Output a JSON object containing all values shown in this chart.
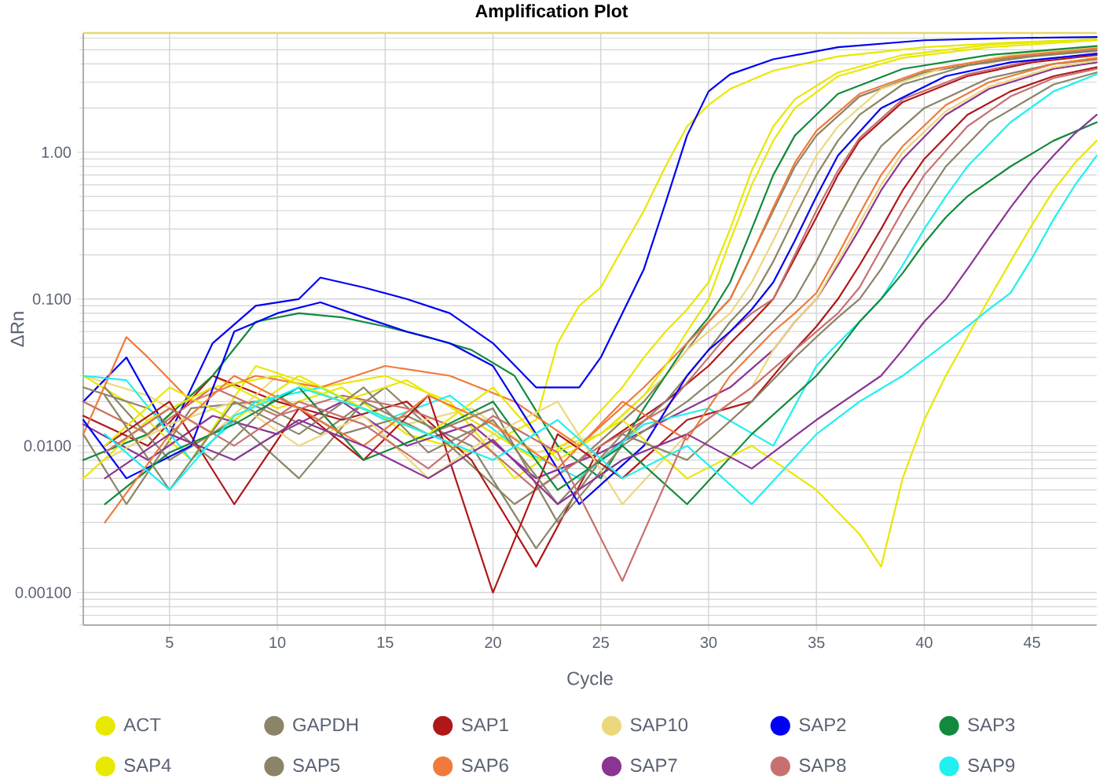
{
  "chart_data": {
    "type": "line",
    "title": "Amplification Plot",
    "xlabel": "Cycle",
    "ylabel": "ΔRn",
    "log": "y",
    "grid": true,
    "legend": "bottom",
    "xlim": [
      1,
      48
    ],
    "xticks": [
      5,
      10,
      15,
      20,
      25,
      30,
      35,
      40,
      45
    ],
    "ylim": [
      0.0006,
      6.5
    ],
    "yticks": [
      {
        "value": 0.001,
        "label": "0.00100"
      },
      {
        "value": 0.01,
        "label": "0.0100"
      },
      {
        "value": 0.1,
        "label": "0.100"
      },
      {
        "value": 1,
        "label": "1.00"
      }
    ],
    "ref_lines": [
      {
        "axis": "y",
        "value": 6.5,
        "color": "#e6d870"
      }
    ],
    "series": [
      {
        "name": "ACT",
        "color": "#e8e800",
        "x": [
          1,
          4,
          7,
          10,
          13,
          16,
          19,
          22,
          23,
          24,
          25,
          26,
          27,
          28,
          29,
          30,
          31,
          33,
          36,
          40,
          44,
          48
        ],
        "values": [
          0.02,
          0.012,
          0.03,
          0.018,
          0.025,
          0.012,
          0.009,
          0.015,
          0.05,
          0.09,
          0.12,
          0.22,
          0.4,
          0.8,
          1.5,
          2.1,
          2.7,
          3.6,
          4.5,
          5.2,
          5.6,
          5.9
        ]
      },
      {
        "name": "GAPDH",
        "color": "#8b8468",
        "x": [
          1,
          3,
          6,
          9,
          12,
          15,
          18,
          21,
          24,
          27,
          28,
          29,
          30,
          31,
          32,
          33,
          34,
          35,
          37,
          40,
          44,
          48
        ],
        "values": [
          0.012,
          0.004,
          0.018,
          0.02,
          0.012,
          0.025,
          0.01,
          0.004,
          0.008,
          0.02,
          0.03,
          0.045,
          0.07,
          0.1,
          0.2,
          0.4,
          0.8,
          1.3,
          2.4,
          3.5,
          4.4,
          5.0
        ]
      },
      {
        "name": "SAP1",
        "color": "#b01818",
        "x": [
          1,
          4,
          7,
          10,
          13,
          16,
          19,
          22,
          25,
          28,
          30,
          31,
          32,
          33,
          34,
          35,
          36,
          37,
          39,
          42,
          45,
          48
        ],
        "values": [
          0.016,
          0.01,
          0.03,
          0.02,
          0.015,
          0.02,
          0.008,
          0.0015,
          0.01,
          0.02,
          0.035,
          0.05,
          0.07,
          0.1,
          0.19,
          0.36,
          0.7,
          1.2,
          2.2,
          3.3,
          4.1,
          4.6
        ]
      },
      {
        "name": "SAP10",
        "color": "#ecd87c",
        "x": [
          1,
          4,
          7,
          10,
          13,
          16,
          19,
          22,
          25,
          28,
          29,
          30,
          31,
          32,
          33,
          34,
          35,
          36,
          38,
          41,
          44,
          48
        ],
        "values": [
          0.03,
          0.022,
          0.012,
          0.03,
          0.02,
          0.014,
          0.018,
          0.009,
          0.012,
          0.03,
          0.045,
          0.06,
          0.08,
          0.13,
          0.25,
          0.5,
          0.95,
          1.5,
          2.7,
          3.8,
          4.6,
          5.2
        ]
      },
      {
        "name": "SAP2",
        "color": "#0000f5",
        "x": [
          1,
          3,
          5,
          7,
          9,
          11,
          12,
          14,
          16,
          18,
          20,
          22,
          24,
          25,
          26,
          27,
          28,
          29,
          30,
          31,
          33,
          36,
          40,
          44,
          48
        ],
        "values": [
          0.02,
          0.04,
          0.012,
          0.05,
          0.09,
          0.1,
          0.14,
          0.12,
          0.1,
          0.08,
          0.05,
          0.025,
          0.025,
          0.04,
          0.08,
          0.16,
          0.45,
          1.3,
          2.6,
          3.4,
          4.3,
          5.2,
          5.8,
          6.0,
          6.1
        ]
      },
      {
        "name": "SAP3",
        "color": "#128a3e",
        "x": [
          1,
          4,
          7,
          9,
          11,
          13,
          15,
          17,
          19,
          21,
          23,
          25,
          27,
          28,
          29,
          30,
          31,
          32,
          33,
          34,
          36,
          39,
          43,
          48
        ],
        "values": [
          0.008,
          0.012,
          0.03,
          0.07,
          0.08,
          0.075,
          0.065,
          0.055,
          0.045,
          0.03,
          0.01,
          0.006,
          0.018,
          0.03,
          0.05,
          0.075,
          0.13,
          0.3,
          0.7,
          1.3,
          2.5,
          3.7,
          4.6,
          5.3
        ]
      },
      {
        "name": "SAP4",
        "color": "#e8e800",
        "x": [
          1,
          3,
          6,
          9,
          12,
          15,
          18,
          21,
          24,
          26,
          27,
          28,
          29,
          30,
          31,
          32,
          33,
          34,
          36,
          39,
          43,
          48
        ],
        "values": [
          0.03,
          0.02,
          0.008,
          0.035,
          0.025,
          0.03,
          0.02,
          0.006,
          0.012,
          0.025,
          0.04,
          0.06,
          0.085,
          0.13,
          0.3,
          0.75,
          1.5,
          2.3,
          3.5,
          4.6,
          5.4,
          5.9
        ]
      },
      {
        "name": "SAP5",
        "color": "#8b8468",
        "x": [
          1,
          4,
          7,
          10,
          13,
          16,
          19,
          22,
          25,
          28,
          30,
          31,
          32,
          33,
          34,
          35,
          36,
          37,
          39,
          42,
          45,
          48
        ],
        "values": [
          0.025,
          0.018,
          0.008,
          0.022,
          0.012,
          0.016,
          0.01,
          0.002,
          0.008,
          0.02,
          0.045,
          0.07,
          0.1,
          0.18,
          0.36,
          0.7,
          1.2,
          1.8,
          2.9,
          3.9,
          4.5,
          4.9
        ]
      },
      {
        "name": "SAP6",
        "color": "#f07a3c",
        "x": [
          1,
          3,
          4,
          6,
          9,
          12,
          15,
          18,
          21,
          24,
          27,
          29,
          30,
          31,
          32,
          33,
          34,
          35,
          37,
          40,
          44,
          48
        ],
        "values": [
          0.012,
          0.055,
          0.04,
          0.02,
          0.03,
          0.025,
          0.035,
          0.03,
          0.02,
          0.01,
          0.025,
          0.05,
          0.07,
          0.1,
          0.2,
          0.42,
          0.85,
          1.4,
          2.5,
          3.6,
          4.5,
          5.1
        ]
      },
      {
        "name": "SAP7",
        "color": "#8c3494",
        "x": [
          1,
          4,
          7,
          10,
          13,
          16,
          19,
          22,
          25,
          28,
          31,
          33,
          34,
          35,
          36,
          37,
          38,
          39,
          41,
          43,
          46,
          48
        ],
        "values": [
          0.014,
          0.008,
          0.016,
          0.012,
          0.02,
          0.01,
          0.014,
          0.006,
          0.009,
          0.015,
          0.025,
          0.045,
          0.07,
          0.1,
          0.17,
          0.3,
          0.55,
          0.9,
          1.8,
          2.7,
          3.7,
          4.1
        ]
      },
      {
        "name": "SAP8",
        "color": "#c87070",
        "x": [
          1,
          4,
          7,
          10,
          13,
          16,
          19,
          22,
          25,
          28,
          30,
          31,
          32,
          33,
          34,
          35,
          36,
          37,
          39,
          42,
          45,
          48
        ],
        "values": [
          0.02,
          0.012,
          0.025,
          0.016,
          0.022,
          0.018,
          0.012,
          0.005,
          0.01,
          0.018,
          0.04,
          0.06,
          0.08,
          0.1,
          0.2,
          0.4,
          0.75,
          1.25,
          2.3,
          3.4,
          4.2,
          4.7
        ]
      },
      {
        "name": "SAP9",
        "color": "#20f0f0",
        "x": [
          1,
          3,
          6,
          9,
          12,
          15,
          18,
          21,
          24,
          27,
          30,
          33,
          35,
          36,
          37,
          38,
          39,
          40,
          41,
          42,
          44,
          46,
          48
        ],
        "values": [
          0.03,
          0.028,
          0.008,
          0.02,
          0.025,
          0.015,
          0.022,
          0.01,
          0.006,
          0.014,
          0.018,
          0.01,
          0.035,
          0.05,
          0.07,
          0.1,
          0.17,
          0.3,
          0.5,
          0.8,
          1.6,
          2.6,
          3.4
        ]
      },
      {
        "color": "#e8e800",
        "x": [
          1,
          4,
          7,
          10,
          13,
          16,
          19,
          22,
          25,
          26,
          27,
          28,
          29,
          30,
          31,
          32,
          33,
          34,
          36,
          39,
          43,
          48
        ],
        "values": [
          0.006,
          0.015,
          0.025,
          0.03,
          0.02,
          0.028,
          0.015,
          0.008,
          0.012,
          0.016,
          0.022,
          0.035,
          0.06,
          0.1,
          0.25,
          0.6,
          1.2,
          2.0,
          3.3,
          4.4,
          5.2,
          5.8
        ]
      },
      {
        "color": "#8b8468",
        "x": [
          2,
          5,
          8,
          11,
          14,
          17,
          20,
          23,
          26,
          29,
          31,
          32,
          33,
          34,
          35,
          36,
          37,
          38,
          40,
          43,
          46,
          48
        ],
        "values": [
          0.025,
          0.008,
          0.015,
          0.006,
          0.02,
          0.012,
          0.018,
          0.003,
          0.01,
          0.02,
          0.035,
          0.05,
          0.07,
          0.1,
          0.18,
          0.35,
          0.65,
          1.1,
          2.0,
          3.2,
          4.0,
          4.3
        ]
      },
      {
        "color": "#b01818",
        "x": [
          2,
          5,
          8,
          11,
          14,
          17,
          20,
          23,
          26,
          29,
          32,
          34,
          35,
          36,
          37,
          38,
          39,
          40,
          42,
          44,
          46,
          48
        ],
        "values": [
          0.01,
          0.02,
          0.004,
          0.018,
          0.008,
          0.022,
          0.001,
          0.012,
          0.006,
          0.015,
          0.02,
          0.045,
          0.065,
          0.1,
          0.17,
          0.3,
          0.55,
          0.9,
          1.8,
          2.6,
          3.3,
          3.8
        ]
      },
      {
        "color": "#ecd87c",
        "x": [
          2,
          5,
          8,
          11,
          14,
          17,
          20,
          23,
          26,
          29,
          32,
          33,
          34,
          35,
          36,
          37,
          38,
          39,
          41,
          43,
          46,
          48
        ],
        "values": [
          0.008,
          0.014,
          0.02,
          0.01,
          0.016,
          0.006,
          0.012,
          0.02,
          0.004,
          0.012,
          0.025,
          0.045,
          0.07,
          0.1,
          0.18,
          0.33,
          0.6,
          1.0,
          1.9,
          2.8,
          3.8,
          4.2
        ]
      },
      {
        "color": "#0000f5",
        "x": [
          1,
          3,
          6,
          8,
          10,
          12,
          14,
          16,
          18,
          20,
          22,
          24,
          27,
          29,
          30,
          31,
          32,
          33,
          34,
          35,
          36,
          38,
          41,
          44,
          48
        ],
        "values": [
          0.015,
          0.006,
          0.01,
          0.06,
          0.08,
          0.095,
          0.075,
          0.06,
          0.05,
          0.035,
          0.012,
          0.004,
          0.01,
          0.03,
          0.045,
          0.06,
          0.085,
          0.13,
          0.25,
          0.5,
          0.95,
          2.0,
          3.3,
          4.1,
          4.7
        ]
      },
      {
        "color": "#128a3e",
        "x": [
          2,
          5,
          8,
          11,
          14,
          17,
          20,
          23,
          26,
          29,
          32,
          35,
          36,
          37,
          38,
          39,
          40,
          41,
          42,
          44,
          46,
          48
        ],
        "values": [
          0.004,
          0.009,
          0.014,
          0.025,
          0.008,
          0.012,
          0.02,
          0.005,
          0.01,
          0.004,
          0.012,
          0.03,
          0.045,
          0.07,
          0.1,
          0.15,
          0.24,
          0.36,
          0.5,
          0.8,
          1.2,
          1.6
        ]
      },
      {
        "color": "#e8e800",
        "x": [
          2,
          5,
          8,
          11,
          14,
          17,
          20,
          23,
          26,
          29,
          32,
          35,
          37,
          38,
          39,
          40,
          41,
          42,
          43,
          44,
          45,
          46,
          47,
          48
        ],
        "values": [
          0.01,
          0.025,
          0.015,
          0.03,
          0.018,
          0.012,
          0.025,
          0.008,
          0.015,
          0.006,
          0.01,
          0.005,
          0.0025,
          0.0015,
          0.006,
          0.015,
          0.03,
          0.055,
          0.1,
          0.18,
          0.32,
          0.55,
          0.85,
          1.2
        ]
      },
      {
        "color": "#8b8468",
        "x": [
          2,
          5,
          8,
          11,
          14,
          17,
          20,
          23,
          26,
          29,
          32,
          34,
          35,
          36,
          37,
          38,
          39,
          40,
          41,
          43,
          46,
          48
        ],
        "values": [
          0.022,
          0.005,
          0.02,
          0.012,
          0.025,
          0.009,
          0.015,
          0.004,
          0.012,
          0.008,
          0.02,
          0.04,
          0.055,
          0.075,
          0.1,
          0.16,
          0.28,
          0.48,
          0.8,
          1.6,
          2.9,
          3.5
        ]
      },
      {
        "color": "#f07a3c",
        "x": [
          2,
          5,
          8,
          11,
          14,
          17,
          20,
          23,
          26,
          29,
          31,
          33,
          34,
          35,
          36,
          37,
          38,
          39,
          41,
          43,
          46,
          48
        ],
        "values": [
          0.003,
          0.012,
          0.03,
          0.018,
          0.01,
          0.022,
          0.014,
          0.007,
          0.02,
          0.011,
          0.03,
          0.06,
          0.08,
          0.11,
          0.2,
          0.38,
          0.7,
          1.1,
          2.1,
          3.0,
          4.0,
          4.4
        ]
      },
      {
        "color": "#8c3494",
        "x": [
          2,
          5,
          8,
          11,
          14,
          17,
          20,
          23,
          26,
          29,
          32,
          35,
          38,
          39,
          40,
          41,
          42,
          43,
          44,
          45,
          46,
          47,
          48
        ],
        "values": [
          0.006,
          0.012,
          0.008,
          0.015,
          0.01,
          0.006,
          0.011,
          0.004,
          0.008,
          0.012,
          0.007,
          0.015,
          0.03,
          0.045,
          0.07,
          0.1,
          0.16,
          0.26,
          0.42,
          0.65,
          0.95,
          1.35,
          1.8
        ]
      },
      {
        "color": "#c87070",
        "x": [
          2,
          5,
          8,
          11,
          14,
          17,
          20,
          23,
          26,
          29,
          32,
          34,
          35,
          36,
          37,
          38,
          39,
          40,
          42,
          44,
          46,
          48
        ],
        "values": [
          0.009,
          0.018,
          0.01,
          0.02,
          0.014,
          0.007,
          0.016,
          0.009,
          0.0012,
          0.012,
          0.025,
          0.045,
          0.06,
          0.08,
          0.12,
          0.22,
          0.4,
          0.7,
          1.5,
          2.4,
          3.2,
          3.7
        ]
      },
      {
        "color": "#20f0f0",
        "x": [
          2,
          5,
          8,
          11,
          14,
          17,
          20,
          23,
          26,
          29,
          32,
          35,
          37,
          39,
          41,
          42,
          43,
          44,
          45,
          46,
          47,
          48
        ],
        "values": [
          0.012,
          0.005,
          0.016,
          0.025,
          0.018,
          0.012,
          0.008,
          0.015,
          0.006,
          0.01,
          0.004,
          0.012,
          0.02,
          0.03,
          0.05,
          0.065,
          0.085,
          0.11,
          0.19,
          0.35,
          0.6,
          0.95
        ]
      }
    ]
  }
}
